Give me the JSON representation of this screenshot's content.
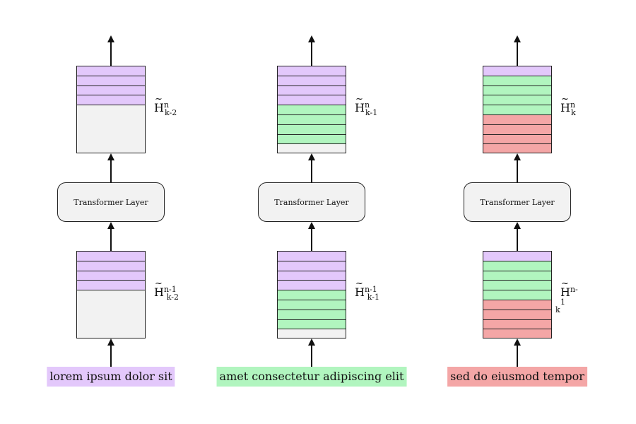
{
  "columns": [
    {
      "id": "k-2",
      "input_text": "lorem ipsum dolor sit",
      "input_color": "purple",
      "transformer_label": "Transformer Layer",
      "top_label": {
        "base": "H",
        "sup": "n",
        "sub": "k-2"
      },
      "bottom_label": {
        "base": "H",
        "sup": "n-1",
        "sub": "k-2"
      },
      "top_rows": [
        "purple",
        "purple",
        "purple",
        "purple",
        "empty"
      ],
      "bottom_rows": [
        "purple",
        "purple",
        "purple",
        "purple",
        "empty"
      ]
    },
    {
      "id": "k-1",
      "input_text": "amet consectetur adipiscing elit",
      "input_color": "green",
      "transformer_label": "Transformer Layer",
      "top_label": {
        "base": "H",
        "sup": "n",
        "sub": "k-1"
      },
      "bottom_label": {
        "base": "H",
        "sup": "n-1",
        "sub": "k-1"
      },
      "top_rows": [
        "purple",
        "purple",
        "purple",
        "purple",
        "green",
        "green",
        "green",
        "green",
        "empty"
      ],
      "bottom_rows": [
        "purple",
        "purple",
        "purple",
        "purple",
        "green",
        "green",
        "green",
        "green",
        "empty"
      ]
    },
    {
      "id": "k",
      "input_text": "sed do eiusmod tempor",
      "input_color": "red",
      "transformer_label": "Transformer Layer",
      "top_label": {
        "base": "H",
        "sup": "n",
        "sub": "k"
      },
      "bottom_label": {
        "base": "H",
        "sup": "n-1",
        "sub": "k"
      },
      "top_rows": [
        "purple",
        "green",
        "green",
        "green",
        "green",
        "red",
        "red",
        "red",
        "red"
      ],
      "bottom_rows": [
        "purple",
        "green",
        "green",
        "green",
        "green",
        "red",
        "red",
        "red",
        "red"
      ]
    }
  ],
  "colors": {
    "purple": "#e3c8fb",
    "green": "#b1f5bf",
    "red": "#f4a6a6",
    "empty": "#f2f2f2"
  }
}
